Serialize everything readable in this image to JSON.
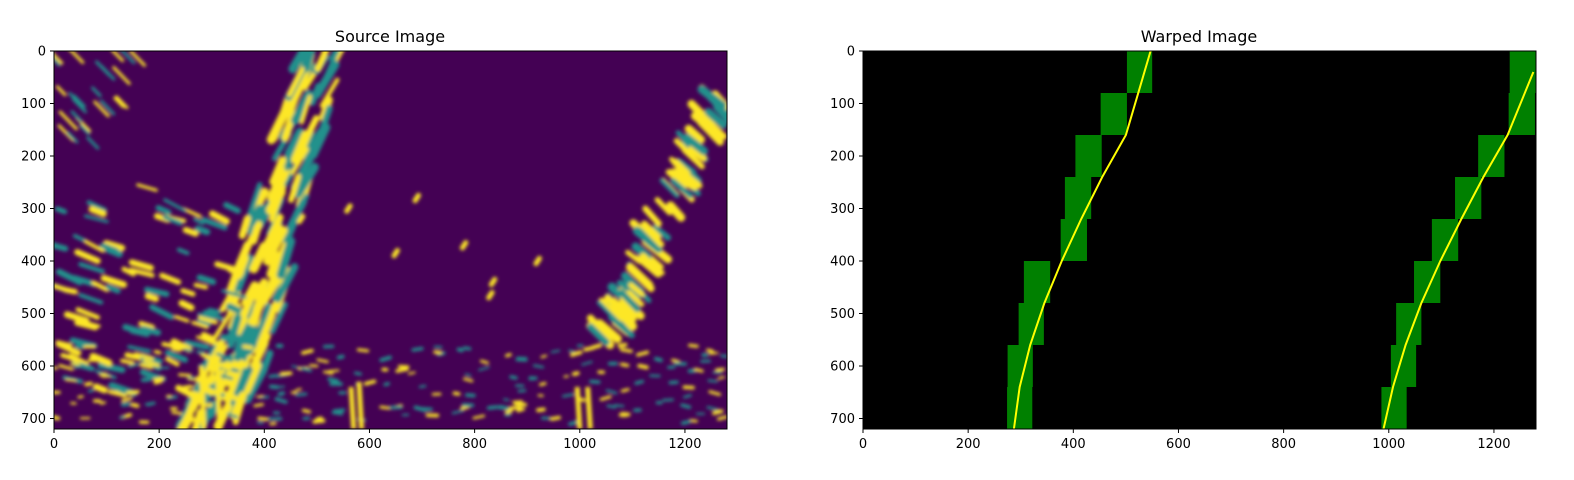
{
  "chart_data": [
    {
      "type": "image",
      "title": "Source Image",
      "xlim": [
        0,
        1280
      ],
      "ylim": [
        720,
        0
      ],
      "x_ticks": [
        "0",
        "200",
        "400",
        "600",
        "800",
        "1000",
        "1200"
      ],
      "y_ticks": [
        "0",
        "100",
        "200",
        "300",
        "400",
        "500",
        "600",
        "700"
      ],
      "colormap": {
        "background": "#440154",
        "edge": "#21918c",
        "foreground": "#fde725"
      }
    },
    {
      "type": "image",
      "title": "Warped Image",
      "xlim": [
        0,
        1280
      ],
      "ylim": [
        720,
        0
      ],
      "x_ticks": [
        "0",
        "200",
        "400",
        "600",
        "800",
        "1000",
        "1200"
      ],
      "y_ticks": [
        "0",
        "100",
        "200",
        "300",
        "400",
        "500",
        "600",
        "700"
      ],
      "colors": {
        "background": "#000000",
        "window": "#008000",
        "fit": "#ffff00"
      },
      "series": [
        {
          "windows": [
            {
              "x0": 274,
              "x1": 322,
              "y0": 640,
              "y1": 720
            },
            {
              "x0": 275,
              "x1": 323,
              "y0": 560,
              "y1": 640
            },
            {
              "x0": 296,
              "x1": 344,
              "y0": 480,
              "y1": 560
            },
            {
              "x0": 306,
              "x1": 356,
              "y0": 400,
              "y1": 480
            },
            {
              "x0": 376,
              "x1": 426,
              "y0": 320,
              "y1": 400
            },
            {
              "x0": 384,
              "x1": 434,
              "y0": 240,
              "y1": 320
            },
            {
              "x0": 404,
              "x1": 454,
              "y0": 160,
              "y1": 240
            },
            {
              "x0": 452,
              "x1": 502,
              "y0": 80,
              "y1": 160
            },
            {
              "x0": 502,
              "x1": 550,
              "y0": 0,
              "y1": 80
            }
          ],
          "fit": {
            "x": [
              287,
              298,
              318,
              345,
              378,
              415,
              455,
              500,
              547
            ],
            "y": [
              720,
              640,
              560,
              480,
              400,
              320,
              240,
              160,
              0
            ]
          }
        },
        {
          "windows": [
            {
              "x0": 986,
              "x1": 1034,
              "y0": 640,
              "y1": 720
            },
            {
              "x0": 1004,
              "x1": 1052,
              "y0": 560,
              "y1": 640
            },
            {
              "x0": 1014,
              "x1": 1062,
              "y0": 480,
              "y1": 560
            },
            {
              "x0": 1048,
              "x1": 1098,
              "y0": 400,
              "y1": 480
            },
            {
              "x0": 1082,
              "x1": 1132,
              "y0": 320,
              "y1": 400
            },
            {
              "x0": 1126,
              "x1": 1176,
              "y0": 240,
              "y1": 320
            },
            {
              "x0": 1170,
              "x1": 1220,
              "y0": 160,
              "y1": 240
            },
            {
              "x0": 1228,
              "x1": 1278,
              "y0": 80,
              "y1": 160
            },
            {
              "x0": 1230,
              "x1": 1280,
              "y0": 0,
              "y1": 80
            }
          ],
          "fit": {
            "x": [
              990,
              1008,
              1032,
              1062,
              1098,
              1138,
              1180,
              1226,
              1275
            ],
            "y": [
              720,
              640,
              560,
              480,
              400,
              320,
              240,
              160,
              40
            ]
          }
        }
      ]
    }
  ]
}
